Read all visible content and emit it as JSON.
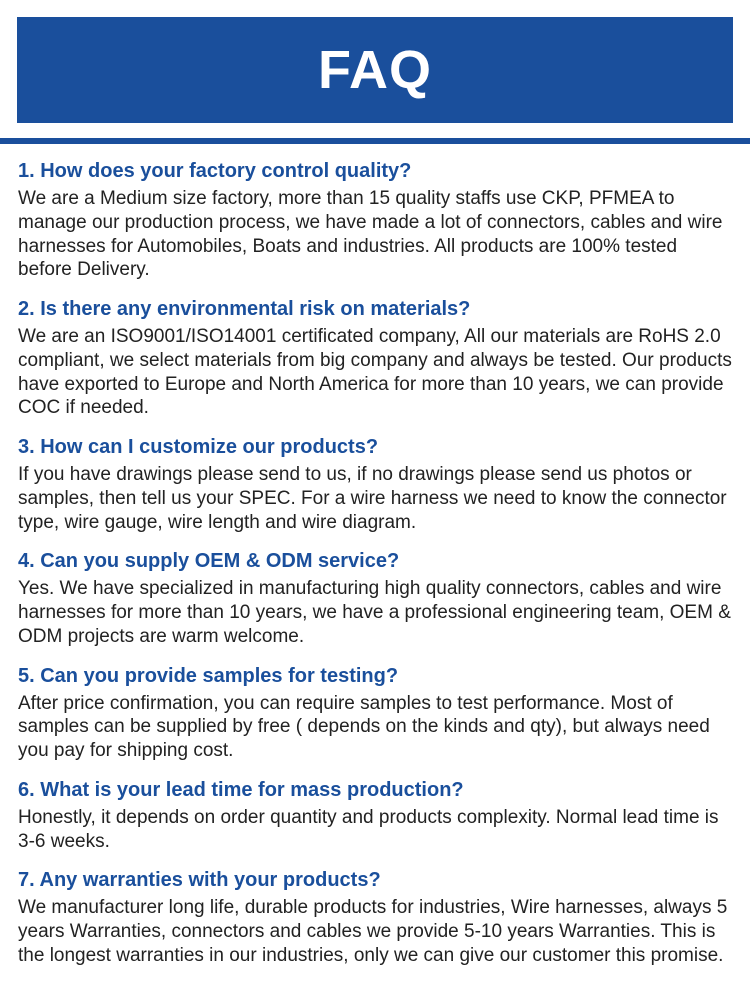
{
  "header": {
    "title": "FAQ"
  },
  "colors": {
    "brand": "#1a4f9c",
    "text": "#222222",
    "background": "#ffffff"
  },
  "faqs": [
    {
      "q": "1. How does your factory control quality?",
      "a": "We are a Medium size factory, more than 15 quality staffs use CKP, PFMEA to manage our production process, we have made a lot of connectors, cables and wire harnesses for Automobiles, Boats and industries. All products are 100% tested before Delivery."
    },
    {
      "q": "2. Is there any environmental risk on materials?",
      "a": "We are an ISO9001/ISO14001 certificated company, All our materials are RoHS 2.0 compliant, we select materials from big company and always be tested. Our products have exported to Europe and North America for more than 10 years, we can provide COC if needed."
    },
    {
      "q": "3. How can I customize our products?",
      "a": "If you have drawings please send to us, if no drawings please send us photos or samples, then tell us your SPEC. For a wire harness we need to know the connector type, wire gauge, wire length and wire diagram."
    },
    {
      "q": "4. Can you supply OEM & ODM service?",
      "a": "Yes. We have specialized in manufacturing high quality connectors, cables and wire harnesses for more than 10 years, we have a professional engineering team, OEM & ODM projects are warm welcome."
    },
    {
      "q": "5. Can you provide samples for testing?",
      "a": "After price confirmation, you can require samples to test performance. Most of samples can be supplied by free ( depends on the kinds and qty), but always need you pay for shipping cost."
    },
    {
      "q": "6. What is your lead time for mass production?",
      "a": "Honestly, it depends on order quantity and products complexity. Normal lead time is 3-6 weeks."
    },
    {
      "q": "7. Any warranties with your products?",
      "a": "We manufacturer long life, durable products for industries, Wire harnesses, always 5 years Warranties, connectors and cables we provide 5-10 years Warranties. This is the longest warranties in our industries, only we can give our customer this promise."
    }
  ]
}
